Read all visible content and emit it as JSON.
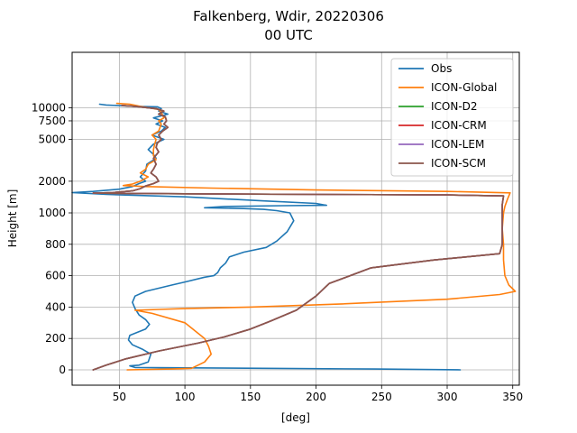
{
  "chart_data": {
    "type": "line",
    "title": "Falkenberg, Wdir, 20220306",
    "subtitle": "00 UTC",
    "xlabel": "[deg]",
    "ylabel": "Height [m]",
    "xlim": [
      14,
      355
    ],
    "x_ticks": [
      50,
      100,
      150,
      200,
      250,
      300,
      350
    ],
    "y_ticks": [
      "0",
      "200",
      "400",
      "600",
      "800",
      "1000",
      "2000",
      "5000",
      "7500",
      "10000"
    ],
    "y_axis_note": "piecewise scale: linear 0-1000 m, logarithmic above 1000 m",
    "grid": true,
    "legend_position": "top-right",
    "series": [
      {
        "name": "Obs",
        "color": "#1f77b4",
        "points": [
          [
            310,
            0
          ],
          [
            245,
            5
          ],
          [
            160,
            10
          ],
          [
            62,
            15
          ],
          [
            58,
            25
          ],
          [
            65,
            30
          ],
          [
            72,
            50
          ],
          [
            74,
            100
          ],
          [
            68,
            130
          ],
          [
            60,
            160
          ],
          [
            57,
            190
          ],
          [
            58,
            220
          ],
          [
            64,
            240
          ],
          [
            70,
            260
          ],
          [
            73,
            290
          ],
          [
            70,
            320
          ],
          [
            65,
            350
          ],
          [
            62,
            390
          ],
          [
            60,
            430
          ],
          [
            62,
            470
          ],
          [
            70,
            500
          ],
          [
            90,
            540
          ],
          [
            100,
            560
          ],
          [
            115,
            590
          ],
          [
            122,
            600
          ],
          [
            125,
            620
          ],
          [
            127,
            650
          ],
          [
            131,
            680
          ],
          [
            134,
            720
          ],
          [
            145,
            750
          ],
          [
            162,
            780
          ],
          [
            170,
            820
          ],
          [
            178,
            880
          ],
          [
            183,
            950
          ],
          [
            180,
            1000
          ],
          [
            170,
            1050
          ],
          [
            160,
            1080
          ],
          [
            145,
            1100
          ],
          [
            115,
            1120
          ],
          [
            130,
            1150
          ],
          [
            175,
            1170
          ],
          [
            208,
            1180
          ],
          [
            200,
            1230
          ],
          [
            160,
            1300
          ],
          [
            100,
            1420
          ],
          [
            40,
            1500
          ],
          [
            14,
            1560
          ],
          [
            30,
            1600
          ],
          [
            50,
            1680
          ],
          [
            60,
            1780
          ],
          [
            65,
            1900
          ],
          [
            70,
            2000
          ],
          [
            66,
            2200
          ],
          [
            70,
            2500
          ],
          [
            71,
            2900
          ],
          [
            78,
            3300
          ],
          [
            76,
            3600
          ],
          [
            72,
            4000
          ],
          [
            76,
            4500
          ],
          [
            84,
            5000
          ],
          [
            75,
            5500
          ],
          [
            82,
            6000
          ],
          [
            85,
            6500
          ],
          [
            78,
            7000
          ],
          [
            83,
            7500
          ],
          [
            76,
            8000
          ],
          [
            87,
            8700
          ],
          [
            80,
            9300
          ],
          [
            82,
            9800
          ],
          [
            79,
            10200
          ],
          [
            62,
            10300
          ],
          [
            40,
            10600
          ],
          [
            35,
            10800
          ]
        ]
      },
      {
        "name": "ICON-Global",
        "color": "#ff7f0e",
        "points": [
          [
            56,
            0
          ],
          [
            90,
            5
          ],
          [
            105,
            10
          ],
          [
            115,
            50
          ],
          [
            120,
            100
          ],
          [
            118,
            150
          ],
          [
            115,
            200
          ],
          [
            100,
            300
          ],
          [
            75,
            360
          ],
          [
            62,
            380
          ],
          [
            80,
            385
          ],
          [
            100,
            390
          ],
          [
            150,
            400
          ],
          [
            220,
            420
          ],
          [
            300,
            450
          ],
          [
            340,
            480
          ],
          [
            352,
            500
          ],
          [
            347,
            540
          ],
          [
            344,
            600
          ],
          [
            343,
            700
          ],
          [
            343,
            800
          ],
          [
            342,
            900
          ],
          [
            343,
            1000
          ],
          [
            344,
            1150
          ],
          [
            346,
            1350
          ],
          [
            348,
            1550
          ],
          [
            300,
            1600
          ],
          [
            200,
            1650
          ],
          [
            120,
            1720
          ],
          [
            70,
            1780
          ],
          [
            53,
            1820
          ],
          [
            60,
            1880
          ],
          [
            66,
            2000
          ],
          [
            72,
            2200
          ],
          [
            66,
            2400
          ],
          [
            70,
            2600
          ],
          [
            72,
            2900
          ],
          [
            78,
            3200
          ],
          [
            76,
            3500
          ],
          [
            76,
            4000
          ],
          [
            77,
            4500
          ],
          [
            78,
            5000
          ],
          [
            75,
            5500
          ],
          [
            80,
            6000
          ],
          [
            82,
            7000
          ],
          [
            80,
            7500
          ],
          [
            84,
            8000
          ],
          [
            82,
            9000
          ],
          [
            80,
            9600
          ],
          [
            72,
            10000
          ],
          [
            66,
            10300
          ],
          [
            58,
            10800
          ],
          [
            48,
            11000
          ]
        ]
      },
      {
        "name": "ICON-D2",
        "color": "#2ca02c",
        "points": [
          [
            30,
            0
          ],
          [
            40,
            30
          ],
          [
            55,
            70
          ],
          [
            80,
            120
          ],
          [
            110,
            170
          ],
          [
            130,
            210
          ],
          [
            150,
            260
          ],
          [
            165,
            310
          ],
          [
            185,
            380
          ],
          [
            200,
            470
          ],
          [
            210,
            550
          ],
          [
            242,
            650
          ],
          [
            290,
            700
          ],
          [
            340,
            740
          ],
          [
            342,
            800
          ],
          [
            342,
            900
          ],
          [
            342,
            1000
          ],
          [
            342,
            1200
          ],
          [
            343,
            1450
          ],
          [
            300,
            1480
          ],
          [
            200,
            1500
          ],
          [
            100,
            1520
          ],
          [
            30,
            1540
          ],
          [
            45,
            1560
          ],
          [
            60,
            1620
          ],
          [
            66,
            1700
          ],
          [
            70,
            1800
          ],
          [
            76,
            1900
          ],
          [
            80,
            2000
          ],
          [
            78,
            2200
          ],
          [
            74,
            2400
          ],
          [
            76,
            2600
          ],
          [
            78,
            2900
          ],
          [
            76,
            3300
          ],
          [
            80,
            3800
          ],
          [
            78,
            4200
          ],
          [
            79,
            4600
          ],
          [
            82,
            5000
          ],
          [
            80,
            5500
          ],
          [
            83,
            6000
          ],
          [
            87,
            6500
          ],
          [
            84,
            7000
          ],
          [
            86,
            7500
          ],
          [
            85,
            8200
          ],
          [
            80,
            8700
          ],
          [
            84,
            9300
          ],
          [
            78,
            9800
          ],
          [
            62,
            10300
          ],
          [
            52,
            10500
          ]
        ]
      },
      {
        "name": "ICON-CRM",
        "color": "#d62728",
        "points": [
          [
            30,
            0
          ],
          [
            40,
            30
          ],
          [
            55,
            70
          ],
          [
            80,
            120
          ],
          [
            110,
            170
          ],
          [
            130,
            210
          ],
          [
            150,
            260
          ],
          [
            165,
            310
          ],
          [
            185,
            380
          ],
          [
            200,
            470
          ],
          [
            210,
            550
          ],
          [
            242,
            650
          ],
          [
            290,
            700
          ],
          [
            340,
            740
          ],
          [
            342,
            800
          ],
          [
            342,
            900
          ],
          [
            342,
            1000
          ],
          [
            342,
            1200
          ],
          [
            343,
            1450
          ],
          [
            300,
            1480
          ],
          [
            200,
            1500
          ],
          [
            100,
            1520
          ],
          [
            30,
            1540
          ],
          [
            45,
            1560
          ],
          [
            60,
            1620
          ],
          [
            66,
            1700
          ],
          [
            70,
            1800
          ],
          [
            76,
            1900
          ],
          [
            80,
            2000
          ],
          [
            78,
            2200
          ],
          [
            74,
            2400
          ],
          [
            76,
            2600
          ],
          [
            78,
            2900
          ],
          [
            76,
            3300
          ],
          [
            80,
            3800
          ],
          [
            78,
            4200
          ],
          [
            79,
            4600
          ],
          [
            82,
            5000
          ],
          [
            80,
            5500
          ],
          [
            83,
            6000
          ],
          [
            87,
            6500
          ],
          [
            84,
            7000
          ],
          [
            86,
            7500
          ],
          [
            85,
            8200
          ],
          [
            80,
            8700
          ],
          [
            84,
            9300
          ],
          [
            78,
            9800
          ],
          [
            62,
            10300
          ],
          [
            52,
            10500
          ]
        ]
      },
      {
        "name": "ICON-LEM",
        "color": "#9467bd",
        "points": [
          [
            30,
            0
          ],
          [
            40,
            30
          ],
          [
            55,
            70
          ],
          [
            80,
            120
          ],
          [
            110,
            170
          ],
          [
            130,
            210
          ],
          [
            150,
            260
          ],
          [
            165,
            310
          ],
          [
            185,
            380
          ],
          [
            200,
            470
          ],
          [
            210,
            550
          ],
          [
            242,
            650
          ],
          [
            290,
            700
          ],
          [
            340,
            740
          ],
          [
            342,
            800
          ],
          [
            342,
            900
          ],
          [
            342,
            1000
          ],
          [
            342,
            1200
          ],
          [
            343,
            1450
          ],
          [
            300,
            1480
          ],
          [
            200,
            1500
          ],
          [
            100,
            1520
          ],
          [
            30,
            1540
          ],
          [
            45,
            1560
          ],
          [
            60,
            1620
          ],
          [
            66,
            1700
          ],
          [
            70,
            1800
          ],
          [
            76,
            1900
          ],
          [
            80,
            2000
          ],
          [
            78,
            2200
          ],
          [
            74,
            2400
          ],
          [
            76,
            2600
          ],
          [
            78,
            2900
          ],
          [
            76,
            3300
          ],
          [
            80,
            3800
          ],
          [
            78,
            4200
          ],
          [
            79,
            4600
          ],
          [
            82,
            5000
          ],
          [
            80,
            5500
          ],
          [
            83,
            6000
          ],
          [
            87,
            6500
          ],
          [
            84,
            7000
          ],
          [
            86,
            7500
          ],
          [
            85,
            8200
          ],
          [
            80,
            8700
          ],
          [
            84,
            9300
          ],
          [
            78,
            9800
          ],
          [
            62,
            10300
          ],
          [
            52,
            10500
          ]
        ]
      },
      {
        "name": "ICON-SCM",
        "color": "#8c564b",
        "points": [
          [
            30,
            0
          ],
          [
            40,
            30
          ],
          [
            55,
            70
          ],
          [
            80,
            120
          ],
          [
            110,
            170
          ],
          [
            130,
            210
          ],
          [
            150,
            260
          ],
          [
            165,
            310
          ],
          [
            185,
            380
          ],
          [
            200,
            470
          ],
          [
            210,
            550
          ],
          [
            242,
            650
          ],
          [
            290,
            700
          ],
          [
            340,
            740
          ],
          [
            342,
            800
          ],
          [
            342,
            900
          ],
          [
            342,
            1000
          ],
          [
            342,
            1200
          ],
          [
            343,
            1450
          ],
          [
            300,
            1480
          ],
          [
            200,
            1500
          ],
          [
            100,
            1520
          ],
          [
            30,
            1540
          ],
          [
            45,
            1560
          ],
          [
            60,
            1620
          ],
          [
            66,
            1700
          ],
          [
            70,
            1800
          ],
          [
            76,
            1900
          ],
          [
            80,
            2000
          ],
          [
            78,
            2200
          ],
          [
            74,
            2400
          ],
          [
            76,
            2600
          ],
          [
            78,
            2900
          ],
          [
            76,
            3300
          ],
          [
            80,
            3800
          ],
          [
            78,
            4200
          ],
          [
            79,
            4600
          ],
          [
            82,
            5000
          ],
          [
            80,
            5500
          ],
          [
            83,
            6000
          ],
          [
            87,
            6500
          ],
          [
            84,
            7000
          ],
          [
            86,
            7500
          ],
          [
            85,
            8200
          ],
          [
            80,
            8700
          ],
          [
            84,
            9300
          ],
          [
            78,
            9800
          ],
          [
            62,
            10300
          ],
          [
            52,
            10500
          ]
        ]
      }
    ]
  }
}
